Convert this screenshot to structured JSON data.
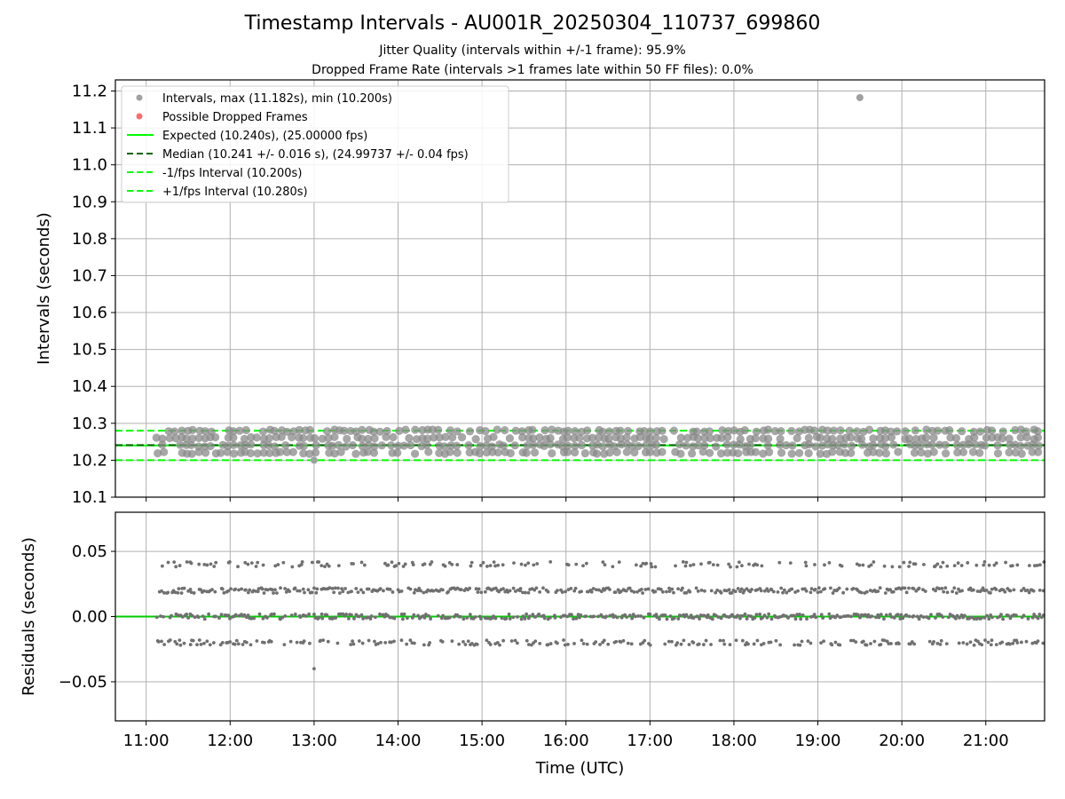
{
  "figure": {
    "title": "Timestamp Intervals - AU001R_20250304_110737_699860",
    "subtitle_1": "Jitter Quality (intervals within +/-1 frame): 95.9%",
    "subtitle_2": "Dropped Frame Rate (intervals >1 frames late within 50 FF files): 0.0%"
  },
  "chart_data": [
    {
      "type": "scatter",
      "name": "intervals",
      "ylabel": "Intervals (seconds)",
      "xlabel": "",
      "xlim": [
        "10:38",
        "21:42"
      ],
      "ylim": [
        10.1,
        11.23
      ],
      "yticks": [
        "10.1",
        "10.2",
        "10.3",
        "10.4",
        "10.5",
        "10.6",
        "10.7",
        "10.8",
        "10.9",
        "11.0",
        "11.1",
        "11.2"
      ],
      "grid": true,
      "legend_position": "upper-left",
      "legend": [
        {
          "label": "Intervals, max (11.182s), min (10.200s)",
          "style": "marker",
          "color": "#a0a0a0"
        },
        {
          "label": "Possible Dropped Frames",
          "style": "marker",
          "color": "#ff6b6b"
        },
        {
          "label": "Expected (10.240s), (25.00000 fps)",
          "style": "solid",
          "color": "#00ff00"
        },
        {
          "label": "Median (10.241 +/- 0.016 s), (24.99737 +/- 0.04 fps)",
          "style": "dashed",
          "color": "#006400"
        },
        {
          "label": "-1/fps Interval (10.200s)",
          "style": "dashed",
          "color": "#00ff00"
        },
        {
          "label": "+1/fps Interval (10.280s)",
          "style": "dashed",
          "color": "#00ff00"
        }
      ],
      "reference_lines": [
        {
          "y": 10.24,
          "style": "solid",
          "color": "#00ff00"
        },
        {
          "y": 10.241,
          "style": "dashed",
          "color": "#006400"
        },
        {
          "y": 10.2,
          "style": "dashed",
          "color": "#00ff00"
        },
        {
          "y": 10.28,
          "style": "dashed",
          "color": "#00ff00"
        }
      ],
      "series": [
        {
          "values": [
            10.22,
            10.24,
            10.26,
            10.28
          ],
          "x_range": [
            "11:08",
            "21:42"
          ],
          "color": "#808080",
          "note_outliers": [
            {
              "x": "19:30",
              "y": 11.182
            },
            {
              "x": "13:00",
              "y": 10.2
            }
          ]
        }
      ]
    },
    {
      "type": "scatter",
      "name": "residuals",
      "ylabel": "Residuals (seconds)",
      "xlabel": "Time (UTC)",
      "xlim": [
        "10:38",
        "21:42"
      ],
      "ylim": [
        -0.08,
        0.08
      ],
      "yticks": [
        "−0.05",
        "0.00",
        "0.05"
      ],
      "xticks": [
        "11:00",
        "12:00",
        "13:00",
        "14:00",
        "15:00",
        "16:00",
        "17:00",
        "18:00",
        "19:00",
        "20:00",
        "21:00"
      ],
      "grid": true,
      "reference_lines": [
        {
          "y": 0.0,
          "style": "solid",
          "color": "#00cc00"
        }
      ],
      "series": [
        {
          "values": [
            -0.02,
            0.0,
            0.02,
            0.04
          ],
          "x_range": [
            "11:08",
            "21:42"
          ],
          "color": "#707070",
          "note_outliers": [
            {
              "x": "13:00",
              "y": -0.04
            }
          ]
        }
      ]
    }
  ]
}
